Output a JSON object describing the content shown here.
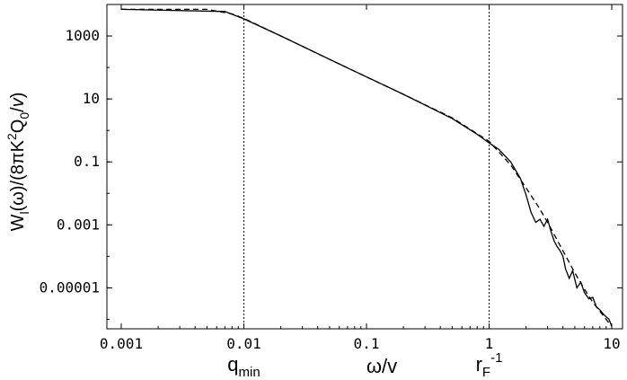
{
  "chart_data": {
    "type": "line",
    "title": "",
    "xlabel": "ω/v",
    "ylabel": "W_l(ω)/(8πK²Q₀/v)",
    "xscale": "log",
    "yscale": "log",
    "xlim": [
      0.001,
      10
    ],
    "ylim": [
      5e-07,
      10000
    ],
    "grid": false,
    "legend": "none",
    "x_ticks": [
      {
        "value": 0.001,
        "label": "0.001"
      },
      {
        "value": 0.01,
        "label": "0.01"
      },
      {
        "value": 0.1,
        "label": "0.1"
      },
      {
        "value": 1,
        "label": "1"
      },
      {
        "value": 10,
        "label": "10"
      }
    ],
    "y_ticks": [
      {
        "value": 1000,
        "label": "1000"
      },
      {
        "value": 10,
        "label": "10"
      },
      {
        "value": 0.1,
        "label": "0.1"
      },
      {
        "value": 0.001,
        "label": "0.001"
      },
      {
        "value": 1e-05,
        "label": "0.00001"
      }
    ],
    "markers": [
      {
        "x": 0.01,
        "sub": "min",
        "main": "q"
      },
      {
        "x": 1,
        "main": "r",
        "sub": "F",
        "sup": "-1"
      }
    ],
    "series": [
      {
        "style": "solid",
        "color": "#000000",
        "x": [
          0.001,
          0.007,
          0.01,
          0.02,
          0.05,
          0.1,
          0.2,
          0.5,
          0.8,
          1.0,
          1.2,
          1.5,
          1.8,
          2.0,
          2.2,
          2.4,
          2.6,
          2.8,
          3.0,
          3.2,
          3.4,
          3.6,
          3.8,
          4.0,
          4.2,
          4.5,
          4.8,
          5.2,
          5.6,
          6.0,
          6.5,
          7.0,
          7.5,
          8.0,
          8.5,
          9.0,
          9.5,
          10.0
        ],
        "y": [
          7000,
          6000,
          3500,
          1000,
          180,
          50,
          14,
          2.4,
          0.75,
          0.4,
          0.25,
          0.1,
          0.03,
          0.009,
          0.0025,
          0.0012,
          0.0015,
          0.0009,
          0.0015,
          0.0006,
          0.0003,
          0.0002,
          0.00015,
          0.0001,
          4e-05,
          2e-05,
          3.5e-05,
          1e-05,
          1.5e-05,
          7e-06,
          4.5e-06,
          5e-06,
          2.5e-06,
          2e-06,
          1.5e-06,
          1.2e-06,
          1e-06,
          6e-07
        ]
      },
      {
        "style": "dashed",
        "color": "#000000",
        "x": [
          0.001,
          0.005,
          0.008,
          0.01,
          0.02,
          0.05,
          0.1,
          0.2,
          0.5,
          1.0,
          1.5,
          2.0,
          2.5,
          3.0,
          4.0,
          5.0,
          6.0,
          7.0,
          8.0,
          9.0,
          10.0
        ],
        "y": [
          7000,
          7000,
          5000,
          3600,
          1000,
          180,
          50,
          14,
          2.5,
          0.45,
          0.08,
          0.015,
          0.004,
          0.0012,
          0.00015,
          3e-05,
          9e-06,
          3.5e-06,
          1.8e-06,
          1e-06,
          6e-07
        ]
      }
    ]
  }
}
